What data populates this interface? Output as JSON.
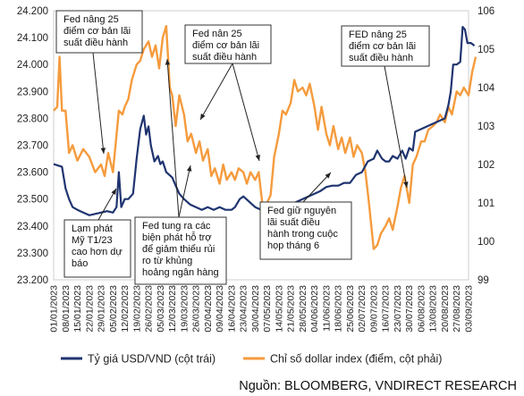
{
  "chart_data": {
    "type": "line",
    "left_axis": {
      "min": 23200,
      "max": 24200,
      "ticks": [
        "23.200",
        "23.300",
        "23.400",
        "23.500",
        "23.600",
        "23.700",
        "23.800",
        "23.900",
        "24.000",
        "24.100",
        "24.200"
      ]
    },
    "right_axis": {
      "min": 99,
      "max": 106,
      "ticks": [
        "99",
        "100",
        "101",
        "102",
        "103",
        "104",
        "105",
        "106"
      ]
    },
    "x_ticks": [
      "01/01/2023",
      "08/01/2023",
      "15/01/2023",
      "22/01/2023",
      "29/01/2023",
      "05/02/2023",
      "12/02/2023",
      "19/02/2023",
      "26/02/2023",
      "05/03/2023",
      "12/03/2023",
      "19/03/2023",
      "26/03/2023",
      "02/04/2023",
      "09/04/2023",
      "16/04/2023",
      "23/04/2023",
      "30/04/2023",
      "07/05/2023",
      "14/05/2023",
      "21/05/2023",
      "28/05/2023",
      "04/06/2023",
      "11/06/2023",
      "18/06/2023",
      "25/06/2023",
      "02/07/2023",
      "09/07/2023",
      "16/07/2023",
      "23/07/2023",
      "30/07/2023",
      "06/08/2023",
      "13/08/2023",
      "20/08/2023",
      "27/08/2023",
      "03/09/2023"
    ],
    "series": [
      {
        "name": "Tỷ giá USD/VND (cột trái)",
        "axis": "left",
        "color": "#1f3470",
        "points": [
          [
            0,
            23630
          ],
          [
            0.7,
            23620
          ],
          [
            1,
            23540
          ],
          [
            1.3,
            23500
          ],
          [
            1.6,
            23470
          ],
          [
            2,
            23460
          ],
          [
            2.5,
            23450
          ],
          [
            3,
            23440
          ],
          [
            3.5,
            23445
          ],
          [
            4,
            23450
          ],
          [
            4.5,
            23455
          ],
          [
            5,
            23450
          ],
          [
            5.3,
            23470
          ],
          [
            5.5,
            23600
          ],
          [
            5.7,
            23470
          ],
          [
            6,
            23500
          ],
          [
            6.3,
            23500
          ],
          [
            6.7,
            23520
          ],
          [
            7,
            23650
          ],
          [
            7.3,
            23760
          ],
          [
            7.6,
            23810
          ],
          [
            7.8,
            23740
          ],
          [
            8,
            23770
          ],
          [
            8.2,
            23700
          ],
          [
            8.5,
            23640
          ],
          [
            8.8,
            23660
          ],
          [
            9,
            23630
          ],
          [
            9.2,
            23640
          ],
          [
            9.5,
            23600
          ],
          [
            10,
            23580
          ],
          [
            10.3,
            23550
          ],
          [
            10.6,
            23520
          ],
          [
            11,
            23500
          ],
          [
            11.5,
            23480
          ],
          [
            12,
            23470
          ],
          [
            12.5,
            23460
          ],
          [
            13,
            23470
          ],
          [
            13.5,
            23460
          ],
          [
            14,
            23470
          ],
          [
            14.5,
            23460
          ],
          [
            15,
            23460
          ],
          [
            15.3,
            23470
          ],
          [
            15.7,
            23500
          ],
          [
            16,
            23510
          ],
          [
            16.5,
            23490
          ],
          [
            17,
            23470
          ],
          [
            17.5,
            23460
          ],
          [
            18,
            23450
          ],
          [
            18.5,
            23450
          ],
          [
            19,
            23460
          ],
          [
            19.5,
            23470
          ],
          [
            20,
            23480
          ],
          [
            20.5,
            23490
          ],
          [
            21,
            23500
          ],
          [
            21.5,
            23510
          ],
          [
            22,
            23520
          ],
          [
            22.5,
            23530
          ],
          [
            23,
            23545
          ],
          [
            23.5,
            23550
          ],
          [
            24,
            23550
          ],
          [
            24.5,
            23560
          ],
          [
            25,
            23560
          ],
          [
            25.5,
            23590
          ],
          [
            26,
            23600
          ],
          [
            26.5,
            23640
          ],
          [
            27,
            23650
          ],
          [
            27.3,
            23680
          ],
          [
            27.7,
            23650
          ],
          [
            28,
            23640
          ],
          [
            28.3,
            23640
          ],
          [
            28.6,
            23660
          ],
          [
            29,
            23650
          ],
          [
            29.4,
            23680
          ],
          [
            29.7,
            23650
          ],
          [
            30,
            23690
          ],
          [
            30.3,
            23680
          ],
          [
            30.5,
            23750
          ],
          [
            31,
            23760
          ],
          [
            31.5,
            23770
          ],
          [
            32,
            23780
          ],
          [
            32.5,
            23790
          ],
          [
            33,
            23800
          ],
          [
            33.3,
            23850
          ],
          [
            33.5,
            23900
          ],
          [
            33.7,
            24000
          ],
          [
            34,
            24000
          ],
          [
            34.3,
            24010
          ],
          [
            34.5,
            24140
          ],
          [
            34.7,
            24130
          ],
          [
            34.9,
            24080
          ],
          [
            35.2,
            24080
          ],
          [
            35.5,
            24070
          ]
        ]
      },
      {
        "name": "Chỉ số dollar index (điểm, cột phải)",
        "axis": "right",
        "color": "#f59b3d",
        "points": [
          [
            0,
            103.4
          ],
          [
            0.3,
            103.5
          ],
          [
            0.5,
            104.8
          ],
          [
            0.7,
            103.4
          ],
          [
            1,
            103.4
          ],
          [
            1.3,
            102.3
          ],
          [
            1.6,
            102.5
          ],
          [
            2,
            102.1
          ],
          [
            2.5,
            102.4
          ],
          [
            3,
            102.2
          ],
          [
            3.5,
            101.8
          ],
          [
            4,
            102.0
          ],
          [
            4.3,
            101.7
          ],
          [
            4.6,
            102.3
          ],
          [
            5,
            101.8
          ],
          [
            5.5,
            103.4
          ],
          [
            5.8,
            103.3
          ],
          [
            6,
            103.5
          ],
          [
            6.3,
            103.7
          ],
          [
            6.6,
            104.2
          ],
          [
            7,
            104.6
          ],
          [
            7.3,
            104.7
          ],
          [
            7.6,
            105.0
          ],
          [
            8,
            105.2
          ],
          [
            8.3,
            104.8
          ],
          [
            8.6,
            105.1
          ],
          [
            8.9,
            104.5
          ],
          [
            9.2,
            105.3
          ],
          [
            9.5,
            105.6
          ],
          [
            9.8,
            104.0
          ],
          [
            10,
            103.8
          ],
          [
            10.3,
            103.0
          ],
          [
            10.6,
            103.8
          ],
          [
            11,
            103.3
          ],
          [
            11.3,
            102.6
          ],
          [
            11.6,
            102.8
          ],
          [
            12,
            102.3
          ],
          [
            12.3,
            102.6
          ],
          [
            12.6,
            102.1
          ],
          [
            13,
            102.4
          ],
          [
            13.3,
            101.7
          ],
          [
            13.6,
            101.9
          ],
          [
            14,
            101.5
          ],
          [
            14.3,
            102.0
          ],
          [
            14.6,
            101.6
          ],
          [
            15,
            101.8
          ],
          [
            15.3,
            101.6
          ],
          [
            15.6,
            101.9
          ],
          [
            16,
            101.8
          ],
          [
            16.3,
            101.5
          ],
          [
            16.6,
            101.8
          ],
          [
            17,
            101.6
          ],
          [
            17.3,
            101.8
          ],
          [
            17.6,
            101.0
          ],
          [
            18,
            101.0
          ],
          [
            18.3,
            101.2
          ],
          [
            18.6,
            102.2
          ],
          [
            19,
            102.8
          ],
          [
            19.3,
            103.4
          ],
          [
            19.6,
            103.3
          ],
          [
            20,
            103.6
          ],
          [
            20.3,
            104.2
          ],
          [
            20.6,
            103.9
          ],
          [
            21,
            104.0
          ],
          [
            21.3,
            103.8
          ],
          [
            21.6,
            104.1
          ],
          [
            22,
            103.5
          ],
          [
            22.3,
            102.9
          ],
          [
            22.6,
            103.5
          ],
          [
            23,
            102.8
          ],
          [
            23.3,
            102.5
          ],
          [
            23.6,
            103.0
          ],
          [
            24,
            102.4
          ],
          [
            24.3,
            102.7
          ],
          [
            24.6,
            102.3
          ],
          [
            25,
            102.7
          ],
          [
            25.3,
            102.2
          ],
          [
            25.6,
            102.5
          ],
          [
            26,
            102.3
          ],
          [
            26.3,
            101.8
          ],
          [
            26.6,
            101.0
          ],
          [
            27,
            99.8
          ],
          [
            27.3,
            99.9
          ],
          [
            27.6,
            100.2
          ],
          [
            28,
            100.4
          ],
          [
            28.3,
            100.6
          ],
          [
            28.6,
            100.3
          ],
          [
            29,
            100.9
          ],
          [
            29.3,
            101.4
          ],
          [
            29.6,
            101.7
          ],
          [
            30,
            101.0
          ],
          [
            30.3,
            102.0
          ],
          [
            30.6,
            102.2
          ],
          [
            31,
            102.6
          ],
          [
            31.3,
            102.6
          ],
          [
            31.6,
            102.9
          ],
          [
            32,
            103.0
          ],
          [
            32.3,
            103.1
          ],
          [
            32.6,
            103.3
          ],
          [
            33,
            103.1
          ],
          [
            33.3,
            103.5
          ],
          [
            33.6,
            103.3
          ],
          [
            34,
            103.9
          ],
          [
            34.3,
            103.8
          ],
          [
            34.6,
            104.0
          ],
          [
            35,
            103.8
          ],
          [
            35.3,
            104.4
          ],
          [
            35.6,
            104.8
          ]
        ]
      }
    ],
    "annotations": [
      {
        "lines": [
          "Fed nâng 25",
          "điểm cơ bản lãi",
          "suất điều hành"
        ]
      },
      {
        "lines": [
          "Fed nân 25",
          "điểm cơ bản lãi",
          "suất điều hành"
        ]
      },
      {
        "lines": [
          "FED nâng 25",
          "điểm cơ bản lãi",
          "suất điều hành"
        ]
      },
      {
        "lines": [
          "Lạm phát",
          "Mỹ T1/23",
          "cao hơn dự",
          "báo"
        ]
      },
      {
        "lines": [
          "Fed tung ra các",
          "biện phát hỗ trợ",
          "để giảm thiểu rủi",
          "ro từ khủng",
          "hoảng ngân hàng"
        ]
      },
      {
        "lines": [
          "Fed giữ nguyên",
          "lãi suất điều",
          "hành trong cuộc",
          "họp tháng 6"
        ]
      }
    ],
    "legend_placement": "bottom"
  },
  "source": "Nguồn: BLOOMBERG, VNDIRECT RESEARCH"
}
